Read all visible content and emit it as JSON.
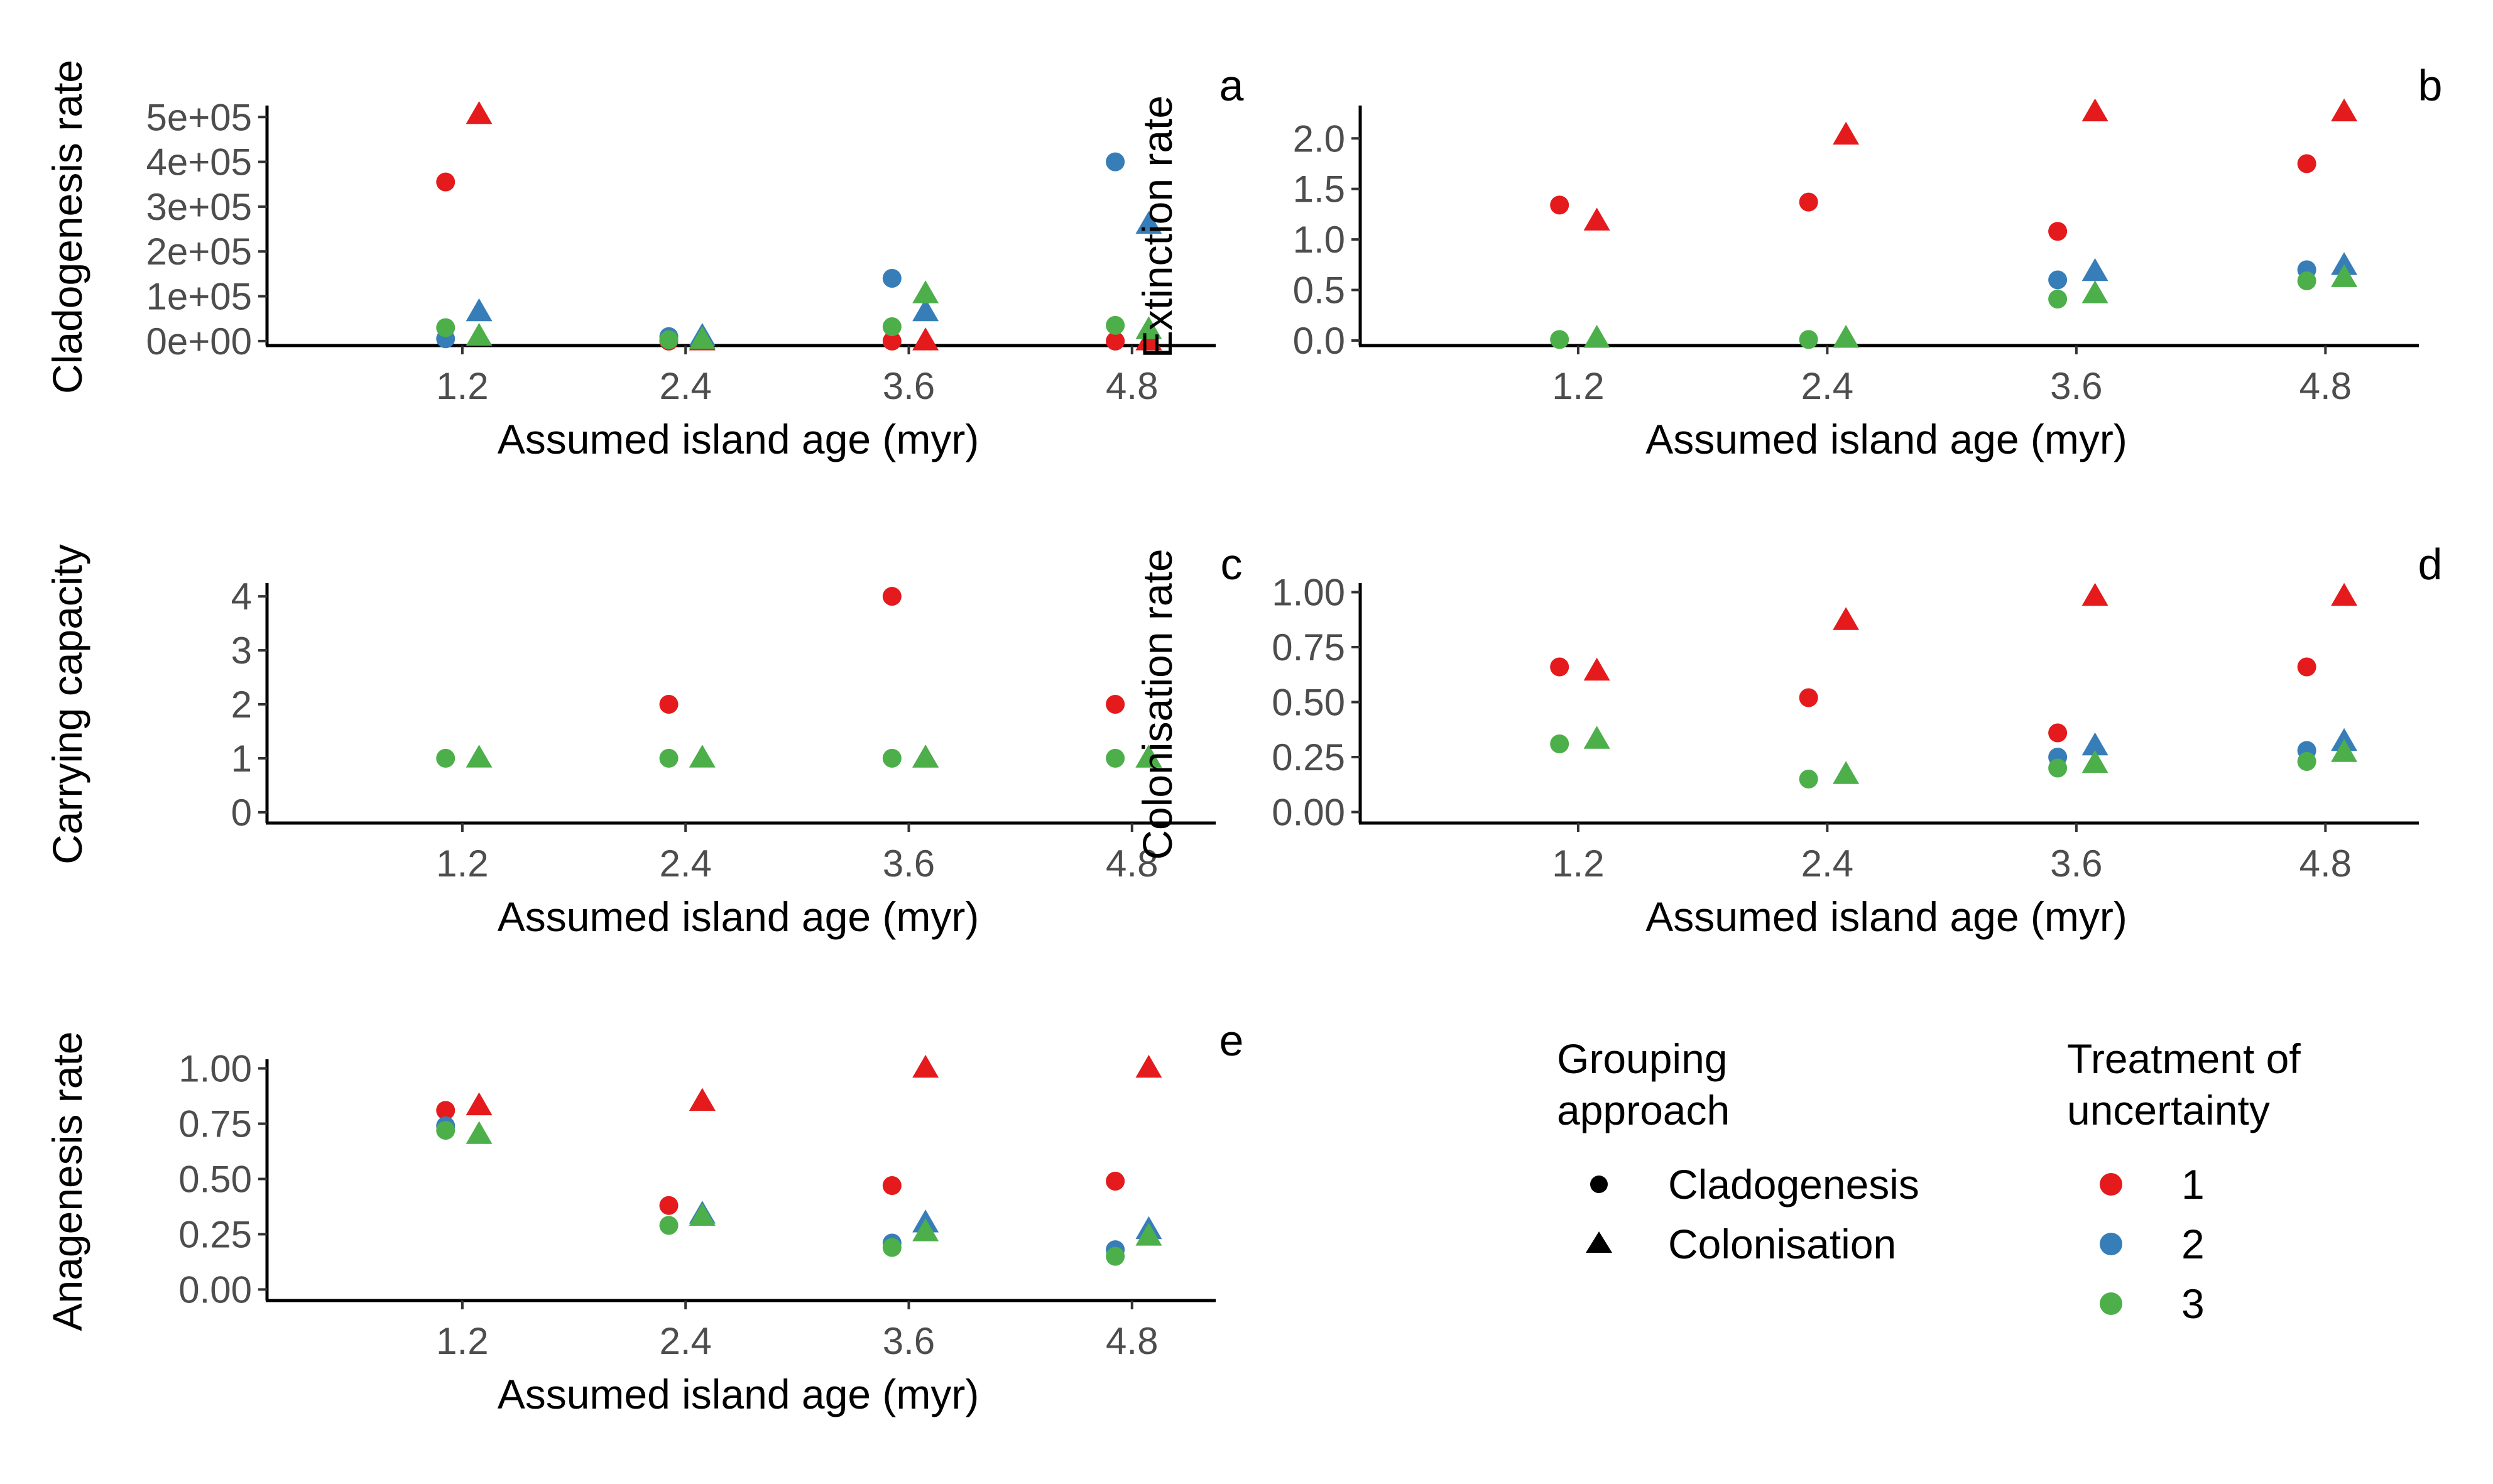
{
  "colors": {
    "1": "#E41A1C",
    "2": "#377EB8",
    "3": "#4DAF4A"
  },
  "legend": {
    "shape_title_lines": [
      "Grouping",
      "approach"
    ],
    "shape_items": [
      {
        "label": "Cladogenesis",
        "shape": "circle"
      },
      {
        "label": "Colonisation",
        "shape": "triangle"
      }
    ],
    "color_title_lines": [
      "Treatment of",
      "uncertainty"
    ],
    "color_items": [
      {
        "label": "1",
        "key": "1"
      },
      {
        "label": "2",
        "key": "2"
      },
      {
        "label": "3",
        "key": "3"
      }
    ]
  },
  "chart_data": [
    {
      "type": "scatter",
      "tag": "a",
      "ylabel": "Cladogenesis rate",
      "xlabel": "Assumed island age (myr)",
      "xticks": [
        "1.2",
        "2.4",
        "3.6",
        "4.8"
      ],
      "xlim": [
        0.15,
        5.25
      ],
      "ylim": [
        -10000,
        520000
      ],
      "yticks": [
        0,
        100000,
        200000,
        300000,
        400000,
        500000
      ],
      "ytick_labels": [
        "0e+00",
        "1e+05",
        "2e+05",
        "3e+05",
        "4e+05",
        "5e+05"
      ],
      "series": [
        {
          "group": "Cladogenesis",
          "shape": "circle",
          "treatment": "1",
          "x": [
            1.2,
            2.4,
            3.6,
            4.8
          ],
          "y": [
            355000,
            0,
            0,
            0
          ]
        },
        {
          "group": "Cladogenesis",
          "shape": "circle",
          "treatment": "2",
          "x": [
            1.2,
            2.4,
            3.6,
            4.8
          ],
          "y": [
            5000,
            10000,
            140000,
            400000
          ]
        },
        {
          "group": "Cladogenesis",
          "shape": "circle",
          "treatment": "3",
          "x": [
            1.2,
            2.4,
            3.6,
            4.8
          ],
          "y": [
            30000,
            3000,
            32000,
            35000
          ]
        },
        {
          "group": "Colonisation",
          "shape": "triangle",
          "treatment": "1",
          "x": [
            1.2,
            2.4,
            3.6,
            4.8
          ],
          "y": [
            505000,
            0,
            0,
            0
          ]
        },
        {
          "group": "Colonisation",
          "shape": "triangle",
          "treatment": "2",
          "x": [
            1.2,
            2.4,
            3.6,
            4.8
          ],
          "y": [
            65000,
            10000,
            65000,
            260000
          ]
        },
        {
          "group": "Colonisation",
          "shape": "triangle",
          "treatment": "3",
          "x": [
            1.2,
            2.4,
            3.6,
            4.8
          ],
          "y": [
            10000,
            3000,
            105000,
            25000
          ]
        }
      ]
    },
    {
      "type": "scatter",
      "tag": "b",
      "ylabel": "Extinction rate",
      "xlabel": "Assumed island age (myr)",
      "xticks": [
        "1.2",
        "2.4",
        "3.6",
        "4.8"
      ],
      "xlim": [
        0.15,
        5.25
      ],
      "ylim": [
        -0.05,
        2.3
      ],
      "yticks": [
        0,
        0.5,
        1,
        1.5,
        2
      ],
      "ytick_labels": [
        "0.0",
        "0.5",
        "1.0",
        "1.5",
        "2.0"
      ],
      "series": [
        {
          "group": "Cladogenesis",
          "shape": "circle",
          "treatment": "1",
          "x": [
            1.2,
            2.4,
            3.6,
            4.8
          ],
          "y": [
            1.34,
            1.37,
            1.08,
            1.75
          ]
        },
        {
          "group": "Cladogenesis",
          "shape": "circle",
          "treatment": "2",
          "x": [
            3.6,
            4.8
          ],
          "y": [
            0.6,
            0.7
          ]
        },
        {
          "group": "Cladogenesis",
          "shape": "circle",
          "treatment": "3",
          "x": [
            1.2,
            2.4,
            3.6,
            4.8
          ],
          "y": [
            0.01,
            0.01,
            0.41,
            0.59
          ]
        },
        {
          "group": "Colonisation",
          "shape": "triangle",
          "treatment": "1",
          "x": [
            1.2,
            2.4,
            3.6,
            4.8
          ],
          "y": [
            1.18,
            2.03,
            2.26,
            2.26
          ]
        },
        {
          "group": "Colonisation",
          "shape": "triangle",
          "treatment": "2",
          "x": [
            3.6,
            4.8
          ],
          "y": [
            0.68,
            0.74
          ]
        },
        {
          "group": "Colonisation",
          "shape": "triangle",
          "treatment": "3",
          "x": [
            1.2,
            2.4,
            3.6,
            4.8
          ],
          "y": [
            0.02,
            0.02,
            0.46,
            0.62
          ]
        }
      ]
    },
    {
      "type": "scatter",
      "tag": "c",
      "ylabel": "Carrying capacity",
      "xlabel": "Assumed island age (myr)",
      "xticks": [
        "1.2",
        "2.4",
        "3.6",
        "4.8"
      ],
      "xlim": [
        0.15,
        5.25
      ],
      "ylim": [
        -0.2,
        4.2
      ],
      "yticks": [
        0,
        1,
        2,
        3,
        4
      ],
      "ytick_labels": [
        "0",
        "1",
        "2",
        "3",
        "4"
      ],
      "series": [
        {
          "group": "Cladogenesis",
          "shape": "circle",
          "treatment": "1",
          "x": [
            2.4,
            3.6,
            4.8
          ],
          "y": [
            2,
            4,
            2
          ]
        },
        {
          "group": "Cladogenesis",
          "shape": "circle",
          "treatment": "3",
          "x": [
            1.2,
            2.4,
            3.6,
            4.8
          ],
          "y": [
            1,
            1,
            1,
            1
          ]
        },
        {
          "group": "Colonisation",
          "shape": "triangle",
          "treatment": "1",
          "x": [
            3.6,
            4.8
          ],
          "y": [
            1,
            1
          ]
        },
        {
          "group": "Colonisation",
          "shape": "triangle",
          "treatment": "3",
          "x": [
            1.2,
            2.4,
            3.6,
            4.8
          ],
          "y": [
            1,
            1,
            1,
            1
          ]
        }
      ]
    },
    {
      "type": "scatter",
      "tag": "d",
      "ylabel": "Colonisation rate",
      "xlabel": "Assumed island age (myr)",
      "xticks": [
        "1.2",
        "2.4",
        "3.6",
        "4.8"
      ],
      "xlim": [
        0.15,
        5.25
      ],
      "ylim": [
        -0.05,
        1.03
      ],
      "yticks": [
        0,
        0.25,
        0.5,
        0.75,
        1
      ],
      "ytick_labels": [
        "0.00",
        "0.25",
        "0.50",
        "0.75",
        "1.00"
      ],
      "series": [
        {
          "group": "Cladogenesis",
          "shape": "circle",
          "treatment": "1",
          "x": [
            1.2,
            2.4,
            3.6,
            4.8
          ],
          "y": [
            0.66,
            0.52,
            0.36,
            0.66
          ]
        },
        {
          "group": "Cladogenesis",
          "shape": "circle",
          "treatment": "2",
          "x": [
            3.6,
            4.8
          ],
          "y": [
            0.25,
            0.28
          ]
        },
        {
          "group": "Cladogenesis",
          "shape": "circle",
          "treatment": "3",
          "x": [
            1.2,
            2.4,
            3.6,
            4.8
          ],
          "y": [
            0.31,
            0.15,
            0.2,
            0.23
          ]
        },
        {
          "group": "Colonisation",
          "shape": "triangle",
          "treatment": "1",
          "x": [
            1.2,
            2.4,
            3.6,
            4.8
          ],
          "y": [
            0.64,
            0.87,
            0.98,
            0.98
          ]
        },
        {
          "group": "Colonisation",
          "shape": "triangle",
          "treatment": "2",
          "x": [
            3.6,
            4.8
          ],
          "y": [
            0.3,
            0.32
          ]
        },
        {
          "group": "Colonisation",
          "shape": "triangle",
          "treatment": "3",
          "x": [
            1.2,
            2.4,
            3.6,
            4.8
          ],
          "y": [
            0.33,
            0.17,
            0.22,
            0.27
          ]
        }
      ]
    },
    {
      "type": "scatter",
      "tag": "e",
      "ylabel": "Anagenesis rate",
      "xlabel": "Assumed island age (myr)",
      "xticks": [
        "1.2",
        "2.4",
        "3.6",
        "4.8"
      ],
      "xlim": [
        0.15,
        5.25
      ],
      "ylim": [
        -0.05,
        1.03
      ],
      "yticks": [
        0,
        0.25,
        0.5,
        0.75,
        1
      ],
      "ytick_labels": [
        "0.00",
        "0.25",
        "0.50",
        "0.75",
        "1.00"
      ],
      "series": [
        {
          "group": "Cladogenesis",
          "shape": "circle",
          "treatment": "1",
          "x": [
            1.2,
            2.4,
            3.6,
            4.8
          ],
          "y": [
            0.81,
            0.38,
            0.47,
            0.49
          ]
        },
        {
          "group": "Cladogenesis",
          "shape": "circle",
          "treatment": "2",
          "x": [
            1.2,
            3.6,
            4.8
          ],
          "y": [
            0.74,
            0.21,
            0.18
          ]
        },
        {
          "group": "Cladogenesis",
          "shape": "circle",
          "treatment": "3",
          "x": [
            1.2,
            2.4,
            3.6,
            4.8
          ],
          "y": [
            0.72,
            0.29,
            0.19,
            0.15
          ]
        },
        {
          "group": "Colonisation",
          "shape": "triangle",
          "treatment": "1",
          "x": [
            1.2,
            2.4,
            3.6,
            4.8
          ],
          "y": [
            0.83,
            0.85,
            1.0,
            1.0
          ]
        },
        {
          "group": "Colonisation",
          "shape": "triangle",
          "treatment": "2",
          "x": [
            2.4,
            3.6,
            4.8
          ],
          "y": [
            0.34,
            0.3,
            0.27
          ]
        },
        {
          "group": "Colonisation",
          "shape": "triangle",
          "treatment": "3",
          "x": [
            1.2,
            2.4,
            3.6,
            4.8
          ],
          "y": [
            0.7,
            0.33,
            0.26,
            0.24
          ]
        }
      ]
    }
  ]
}
